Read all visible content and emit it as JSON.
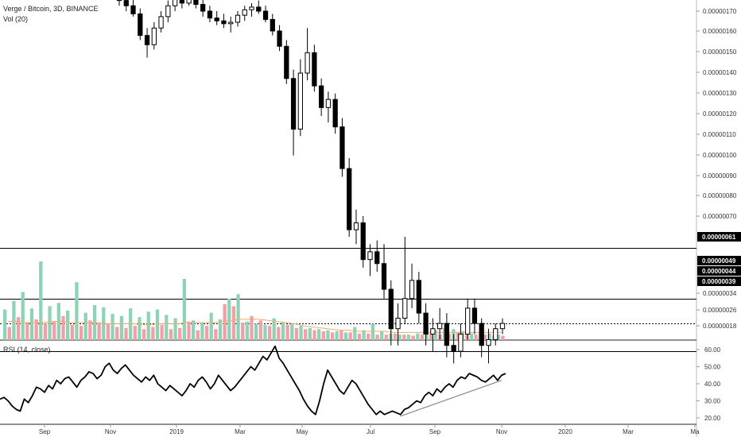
{
  "header": {
    "symbol_title": "Verge / Bitcoin, 3D, BINANCE",
    "volume_indicator": "Vol (20)",
    "rsi_indicator": "RSI (14, close)"
  },
  "colors": {
    "up_candle": "#ffffff",
    "down_candle": "#000000",
    "volume_up": "#8fd3b6",
    "volume_down": "#f2a0a7",
    "volume_ma": "#f5a96b",
    "rsi_line": "#000000",
    "rsi_trendline": "#888888",
    "level_line": "#000000"
  },
  "chart_data": [
    {
      "type": "candlestick",
      "title": "Verge / Bitcoin, 3D, BINANCE",
      "ylim": [
        1.3e-07,
        1.77e-06
      ],
      "price_scale_labels": [
        "0.00000170",
        "0.00000160",
        "0.00000150",
        "0.00000140",
        "0.00000130",
        "0.00000120",
        "0.00000110",
        "0.00000100",
        "0.00000090",
        "0.00000080",
        "0.00000070",
        "0.00000034",
        "0.00000026",
        "0.00000018"
      ],
      "time_axis_labels": [
        "Sep",
        "Nov",
        "2019",
        "Mar",
        "May",
        "Jul",
        "Sep",
        "Nov",
        "2020",
        "Mar",
        "Ma"
      ],
      "horizontal_levels": [
        {
          "label": "0.00000061",
          "value": 6.1e-07,
          "style": "solid"
        },
        {
          "label": "0.00000049",
          "value": 4.9e-07,
          "style": "solid"
        },
        {
          "label": "0.00000044",
          "value": 4.4e-07,
          "style": "dotted"
        },
        {
          "label": "0.00000039",
          "value": 3.9e-07,
          "style": "solid"
        }
      ],
      "candles": [
        {
          "i": 0,
          "o": 1.8e-06,
          "h": 1.86e-06,
          "l": 1.74e-06,
          "c": 1.78e-06
        },
        {
          "i": 1,
          "o": 1.78e-06,
          "h": 1.82e-06,
          "l": 1.7e-06,
          "c": 1.74e-06
        },
        {
          "i": 2,
          "o": 1.74e-06,
          "h": 1.79e-06,
          "l": 1.66e-06,
          "c": 1.68e-06
        },
        {
          "i": 3,
          "o": 1.68e-06,
          "h": 1.72e-06,
          "l": 1.5e-06,
          "c": 1.53e-06
        },
        {
          "i": 4,
          "o": 1.53e-06,
          "h": 1.58e-06,
          "l": 1.39e-06,
          "c": 1.47e-06
        },
        {
          "i": 5,
          "o": 1.47e-06,
          "h": 1.62e-06,
          "l": 1.44e-06,
          "c": 1.58e-06
        },
        {
          "i": 6,
          "o": 1.58e-06,
          "h": 1.7e-06,
          "l": 1.55e-06,
          "c": 1.66e-06
        },
        {
          "i": 7,
          "o": 1.66e-06,
          "h": 1.78e-06,
          "l": 1.62e-06,
          "c": 1.74e-06
        },
        {
          "i": 8,
          "o": 1.74e-06,
          "h": 1.82e-06,
          "l": 1.7e-06,
          "c": 1.79e-06
        },
        {
          "i": 9,
          "o": 1.79e-06,
          "h": 1.84e-06,
          "l": 1.72e-06,
          "c": 1.76e-06
        },
        {
          "i": 10,
          "o": 1.76e-06,
          "h": 1.85e-06,
          "l": 1.74e-06,
          "c": 1.82e-06
        },
        {
          "i": 11,
          "o": 1.82e-06,
          "h": 1.86e-06,
          "l": 1.72e-06,
          "c": 1.75e-06
        },
        {
          "i": 12,
          "o": 1.75e-06,
          "h": 1.8e-06,
          "l": 1.66e-06,
          "c": 1.7e-06
        },
        {
          "i": 13,
          "o": 1.7e-06,
          "h": 1.74e-06,
          "l": 1.62e-06,
          "c": 1.65e-06
        },
        {
          "i": 14,
          "o": 1.65e-06,
          "h": 1.7e-06,
          "l": 1.6e-06,
          "c": 1.63e-06
        },
        {
          "i": 15,
          "o": 1.63e-06,
          "h": 1.68e-06,
          "l": 1.58e-06,
          "c": 1.61e-06
        },
        {
          "i": 16,
          "o": 1.61e-06,
          "h": 1.66e-06,
          "l": 1.55e-06,
          "c": 1.62e-06
        },
        {
          "i": 17,
          "o": 1.62e-06,
          "h": 1.7e-06,
          "l": 1.59e-06,
          "c": 1.67e-06
        },
        {
          "i": 18,
          "o": 1.67e-06,
          "h": 1.74e-06,
          "l": 1.63e-06,
          "c": 1.71e-06
        },
        {
          "i": 19,
          "o": 1.71e-06,
          "h": 1.76e-06,
          "l": 1.66e-06,
          "c": 1.73e-06
        },
        {
          "i": 20,
          "o": 1.73e-06,
          "h": 1.78e-06,
          "l": 1.68e-06,
          "c": 1.7e-06
        },
        {
          "i": 21,
          "o": 1.7e-06,
          "h": 1.74e-06,
          "l": 1.62e-06,
          "c": 1.64e-06
        },
        {
          "i": 22,
          "o": 1.64e-06,
          "h": 1.68e-06,
          "l": 1.53e-06,
          "c": 1.56e-06
        },
        {
          "i": 23,
          "o": 1.56e-06,
          "h": 1.6e-06,
          "l": 1.43e-06,
          "c": 1.46e-06
        },
        {
          "i": 24,
          "o": 1.46e-06,
          "h": 1.5e-06,
          "l": 1.24e-06,
          "c": 1.27e-06
        },
        {
          "i": 25,
          "o": 1.27e-06,
          "h": 1.32e-06,
          "l": 9.1e-07,
          "c": 1.02e-06
        },
        {
          "i": 26,
          "o": 1.02e-06,
          "h": 1.38e-06,
          "l": 9.9e-07,
          "c": 1.3e-06
        },
        {
          "i": 27,
          "o": 1.3e-06,
          "h": 1.58e-06,
          "l": 1.26e-06,
          "c": 1.42e-06
        },
        {
          "i": 28,
          "o": 1.42e-06,
          "h": 1.47e-06,
          "l": 1.2e-06,
          "c": 1.23e-06
        },
        {
          "i": 29,
          "o": 1.23e-06,
          "h": 1.27e-06,
          "l": 1.08e-06,
          "c": 1.12e-06
        },
        {
          "i": 30,
          "o": 1.12e-06,
          "h": 1.2e-06,
          "l": 1.05e-06,
          "c": 1.16e-06
        },
        {
          "i": 31,
          "o": 1.16e-06,
          "h": 1.19e-06,
          "l": 1e-06,
          "c": 1.03e-06
        },
        {
          "i": 32,
          "o": 1.03e-06,
          "h": 1.07e-06,
          "l": 8.3e-07,
          "c": 8.6e-07
        },
        {
          "i": 33,
          "o": 8.6e-07,
          "h": 9e-07,
          "l": 6.4e-07,
          "c": 6.6e-07
        },
        {
          "i": 34,
          "o": 6.6e-07,
          "h": 7.2e-07,
          "l": 6.2e-07,
          "c": 6.8e-07
        },
        {
          "i": 35,
          "o": 6.8e-07,
          "h": 7e-07,
          "l": 5.6e-07,
          "c": 5.8e-07
        },
        {
          "i": 36,
          "o": 5.8e-07,
          "h": 6.2e-07,
          "l": 5.4e-07,
          "c": 6e-07
        },
        {
          "i": 37,
          "o": 6e-07,
          "h": 6.3e-07,
          "l": 5.5e-07,
          "c": 5.7e-07
        },
        {
          "i": 38,
          "o": 5.7e-07,
          "h": 6.2e-07,
          "l": 4.9e-07,
          "c": 5.1e-07
        },
        {
          "i": 39,
          "o": 5.1e-07,
          "h": 5.3e-07,
          "l": 4e-07,
          "c": 4.3e-07
        },
        {
          "i": 40,
          "o": 4.3e-07,
          "h": 4.8e-07,
          "l": 4e-07,
          "c": 4.5e-07
        },
        {
          "i": 41,
          "o": 4.5e-07,
          "h": 6.4e-07,
          "l": 4.4e-07,
          "c": 4.9e-07
        },
        {
          "i": 42,
          "o": 4.9e-07,
          "h": 5.7e-07,
          "l": 4.7e-07,
          "c": 5.3e-07
        },
        {
          "i": 43,
          "o": 5.3e-07,
          "h": 5.5e-07,
          "l": 4.4e-07,
          "c": 4.6e-07
        },
        {
          "i": 44,
          "o": 4.6e-07,
          "h": 4.8e-07,
          "l": 4e-07,
          "c": 4.2e-07
        },
        {
          "i": 45,
          "o": 4.2e-07,
          "h": 4.5e-07,
          "l": 3.9e-07,
          "c": 4.3e-07
        },
        {
          "i": 46,
          "o": 4.3e-07,
          "h": 4.7e-07,
          "l": 4.1e-07,
          "c": 4.4e-07
        },
        {
          "i": 47,
          "o": 4.4e-07,
          "h": 4.6e-07,
          "l": 3.8e-07,
          "c": 4e-07
        },
        {
          "i": 48,
          "o": 4e-07,
          "h": 4.2e-07,
          "l": 3.7e-07,
          "c": 3.9e-07
        },
        {
          "i": 49,
          "o": 3.9e-07,
          "h": 4.4e-07,
          "l": 3.8e-07,
          "c": 4.2e-07
        },
        {
          "i": 50,
          "o": 4.2e-07,
          "h": 4.9e-07,
          "l": 4.1e-07,
          "c": 4.7e-07
        },
        {
          "i": 51,
          "o": 4.7e-07,
          "h": 4.9e-07,
          "l": 4.2e-07,
          "c": 4.4e-07
        },
        {
          "i": 52,
          "o": 4.4e-07,
          "h": 4.5e-07,
          "l": 3.8e-07,
          "c": 4e-07
        },
        {
          "i": 53,
          "o": 4e-07,
          "h": 4.3e-07,
          "l": 3.7e-07,
          "c": 4.1e-07
        },
        {
          "i": 54,
          "o": 4.1e-07,
          "h": 4.4e-07,
          "l": 4e-07,
          "c": 4.3e-07
        },
        {
          "i": 55,
          "o": 4.3e-07,
          "h": 4.5e-07,
          "l": 4.2e-07,
          "c": 4.4e-07
        }
      ]
    },
    {
      "type": "bar",
      "title": "Vol (20)",
      "values_up": [
        2.8,
        3.6,
        4.4,
        2.9,
        7.2,
        3.1,
        3.4,
        2.7,
        5.3,
        2.5,
        3.2,
        3.0,
        2.4,
        2.2,
        2.9,
        2.1,
        2.6,
        2.8,
        2.3,
        2.0,
        5.6,
        1.8,
        1.6,
        2.5,
        1.9,
        3.8,
        4.2,
        1.7,
        1.5,
        1.4,
        2.0,
        1.6,
        1.5,
        1.3,
        1.1,
        1.0,
        0.9,
        0.8,
        0.7,
        1.2,
        0.9,
        1.5,
        0.8,
        0.6,
        0.5,
        0.5,
        0.6,
        0.7,
        0.9,
        1.1,
        1.0,
        0.8,
        0.6,
        0.7,
        0.6,
        0.5
      ],
      "values_down": [
        1.2,
        2.1,
        1.6,
        1.9,
        1.5,
        1.7,
        2.2,
        1.4,
        1.3,
        1.8,
        1.6,
        1.5,
        1.2,
        1.1,
        1.3,
        1.0,
        1.2,
        1.4,
        1.0,
        1.1,
        1.7,
        0.9,
        1.3,
        1.0,
        3.3,
        3.1,
        1.6,
        2.2,
        1.8,
        1.3,
        1.2,
        1.4,
        1.1,
        1.0,
        0.9,
        0.8,
        0.7,
        0.9,
        0.7,
        0.6,
        0.6,
        0.5,
        0.5,
        0.6,
        0.5,
        0.4,
        0.5,
        0.6,
        0.5,
        0.6,
        0.7,
        0.6,
        0.5,
        0.5,
        0.4,
        0.4
      ],
      "ma_values": [
        1.7,
        1.7,
        1.6,
        1.6,
        1.6,
        1.7,
        1.7,
        1.6,
        1.6,
        1.6,
        1.6,
        1.5,
        1.5,
        1.5,
        1.5,
        1.4,
        1.4,
        1.5,
        1.5,
        1.5,
        1.6,
        1.6,
        1.6,
        1.6,
        1.7,
        1.8,
        1.9,
        1.9,
        1.9,
        1.8,
        1.7,
        1.6,
        1.5,
        1.3,
        1.2,
        1.1,
        1.0,
        0.9,
        0.9,
        0.8,
        0.8,
        0.8,
        0.8,
        0.7,
        0.7,
        0.7,
        0.7,
        0.7,
        0.7,
        0.7,
        0.7,
        0.7,
        0.7,
        0.7,
        0.7,
        0.7
      ],
      "ylim": [
        0,
        8
      ]
    },
    {
      "type": "line",
      "title": "RSI (14, close)",
      "ylim": [
        17,
        64
      ],
      "rsi_scale_labels": [
        "60.00",
        "50.00",
        "40.00",
        "30.00",
        "20.00"
      ],
      "values": [
        31,
        32,
        30,
        27,
        25,
        24,
        31,
        29,
        33,
        38,
        37,
        35,
        39,
        37,
        42,
        40,
        43,
        44,
        41,
        38,
        42,
        44,
        47,
        46,
        43,
        45,
        50,
        52,
        48,
        46,
        49,
        51,
        48,
        45,
        43,
        41,
        44,
        42,
        45,
        40,
        38,
        36,
        39,
        37,
        35,
        33,
        36,
        40,
        38,
        42,
        44,
        41,
        37,
        40,
        45,
        42,
        39,
        36,
        38,
        41,
        44,
        47,
        50,
        48,
        52,
        56,
        54,
        58,
        62,
        55,
        52,
        48,
        44,
        40,
        36,
        31,
        27,
        24,
        22,
        30,
        40,
        48,
        44,
        40,
        36,
        34,
        38,
        42,
        40,
        36,
        32,
        28,
        25,
        22,
        24,
        22,
        23,
        24,
        23,
        22,
        25,
        26,
        28,
        30,
        29,
        33,
        35,
        33,
        37,
        35,
        38,
        40,
        38,
        42,
        44,
        43,
        46,
        45,
        44,
        42,
        41,
        43,
        45,
        42,
        45,
        46
      ],
      "trendline": [
        [
          96,
          21
        ],
        [
          124,
          42
        ]
      ]
    }
  ]
}
